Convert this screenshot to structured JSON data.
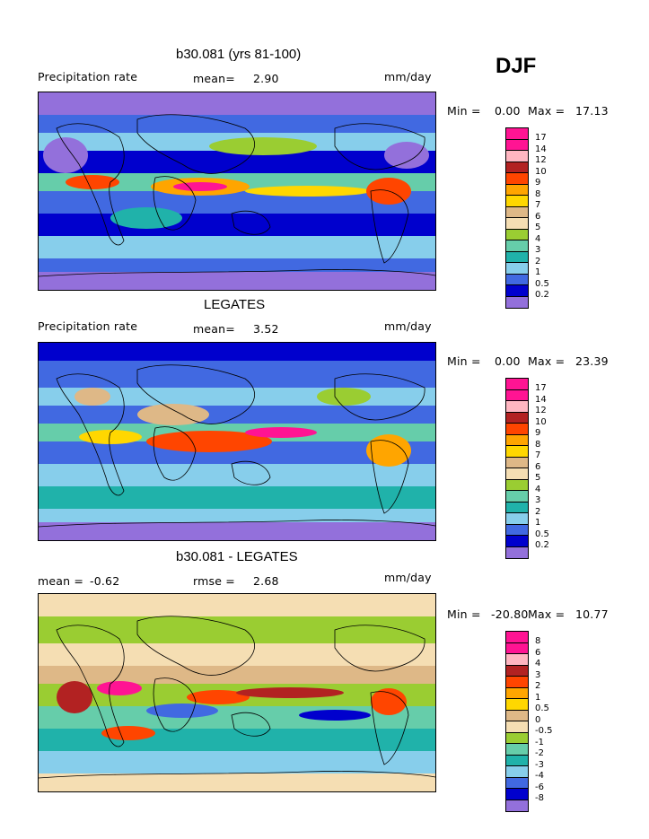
{
  "season": "DJF",
  "panels": [
    {
      "title": "b30.081 (yrs 81-100)",
      "left_label": "Precipitation rate",
      "center_label": "mean=",
      "center_value": "2.90",
      "units": "mm/day",
      "min_label": "Min =",
      "min_value": "0.00",
      "max_label": "Max =",
      "max_value": "17.13",
      "legend_labels": [
        "17",
        "14",
        "12",
        "10",
        "9",
        "8",
        "7",
        "6",
        "5",
        "4",
        "3",
        "2",
        "1",
        "0.5",
        "0.2"
      ]
    },
    {
      "title": "LEGATES",
      "left_label": "Precipitation rate",
      "center_label": "mean=",
      "center_value": "3.52",
      "units": "mm/day",
      "min_label": "Min =",
      "min_value": "0.00",
      "max_label": "Max =",
      "max_value": "23.39",
      "legend_labels": [
        "17",
        "14",
        "12",
        "10",
        "9",
        "8",
        "7",
        "6",
        "5",
        "4",
        "3",
        "2",
        "1",
        "0.5",
        "0.2"
      ]
    },
    {
      "title": "b30.081 - LEGATES",
      "left_label": "mean =",
      "left_value": "-0.62",
      "center_label": "rmse =",
      "center_value": "2.68",
      "units": "mm/day",
      "min_label": "Min =",
      "min_value": "-20.80",
      "max_label": "Max =",
      "max_value": "10.77",
      "legend_labels": [
        "8",
        "6",
        "4",
        "3",
        "2",
        "1",
        "0.5",
        "0",
        "-0.5",
        "-1",
        "-2",
        "-3",
        "-4",
        "-6",
        "-8"
      ]
    }
  ],
  "chart_data": [
    {
      "type": "heatmap",
      "title": "b30.081 (yrs 81-100)",
      "variable": "Precipitation rate",
      "units": "mm/day",
      "mean": 2.9,
      "min": 0.0,
      "max": 17.13,
      "contour_levels": [
        0.2,
        0.5,
        1,
        2,
        3,
        4,
        5,
        6,
        7,
        8,
        9,
        10,
        12,
        14,
        17
      ],
      "colors": [
        "#9370db",
        "#0000cd",
        "#4169e1",
        "#87ceeb",
        "#20b2aa",
        "#66cdaa",
        "#9acd32",
        "#f5deb3",
        "#deb887",
        "#ffd700",
        "#ffa500",
        "#ff4500",
        "#b22222",
        "#ffb6c1",
        "#ff1493",
        "#ff1493"
      ]
    },
    {
      "type": "heatmap",
      "title": "LEGATES",
      "variable": "Precipitation rate",
      "units": "mm/day",
      "mean": 3.52,
      "min": 0.0,
      "max": 23.39,
      "contour_levels": [
        0.2,
        0.5,
        1,
        2,
        3,
        4,
        5,
        6,
        7,
        8,
        9,
        10,
        12,
        14,
        17
      ],
      "colors": [
        "#9370db",
        "#0000cd",
        "#4169e1",
        "#87ceeb",
        "#20b2aa",
        "#66cdaa",
        "#9acd32",
        "#f5deb3",
        "#deb887",
        "#ffd700",
        "#ffa500",
        "#ff4500",
        "#b22222",
        "#ffb6c1",
        "#ff1493",
        "#ff1493"
      ]
    },
    {
      "type": "heatmap",
      "title": "b30.081 - LEGATES",
      "units": "mm/day",
      "mean": -0.62,
      "rmse": 2.68,
      "min": -20.8,
      "max": 10.77,
      "contour_levels": [
        -8,
        -6,
        -4,
        -3,
        -2,
        -1,
        -0.5,
        0,
        0.5,
        1,
        2,
        3,
        4,
        6,
        8
      ],
      "colors": [
        "#9370db",
        "#0000cd",
        "#4169e1",
        "#87ceeb",
        "#20b2aa",
        "#66cdaa",
        "#9acd32",
        "#f5deb3",
        "#deb887",
        "#ffd700",
        "#ffa500",
        "#ff4500",
        "#b22222",
        "#ffb6c1",
        "#ff1493",
        "#ff1493"
      ]
    }
  ]
}
